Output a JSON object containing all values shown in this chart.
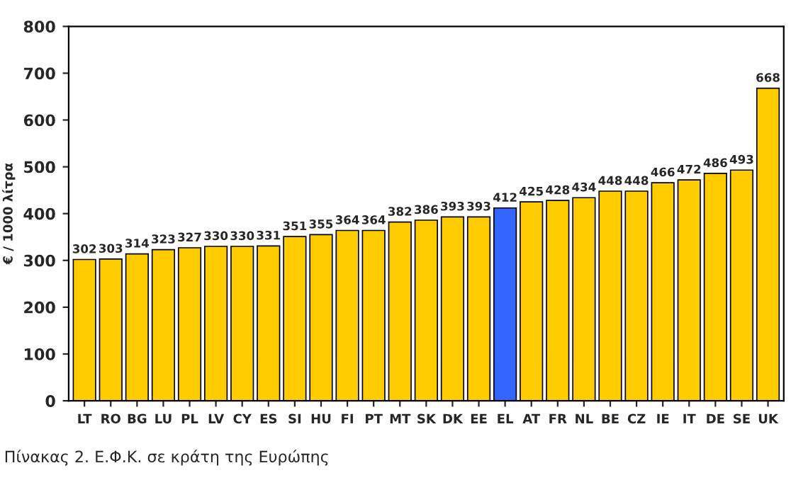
{
  "chart_data": {
    "type": "bar",
    "ylabel": "€ / 1000 λίτρα",
    "categories": [
      "LT",
      "RO",
      "BG",
      "LU",
      "PL",
      "LV",
      "CY",
      "ES",
      "SI",
      "HU",
      "FI",
      "PT",
      "MT",
      "SK",
      "DK",
      "EE",
      "EL",
      "AT",
      "FR",
      "NL",
      "BE",
      "CZ",
      "IE",
      "IT",
      "DE",
      "SE",
      "UK"
    ],
    "values": [
      302,
      303,
      314,
      323,
      327,
      330,
      330,
      331,
      351,
      355,
      364,
      364,
      382,
      386,
      393,
      393,
      412,
      425,
      428,
      434,
      448,
      448,
      466,
      472,
      486,
      493,
      668
    ],
    "colors": [
      "#ffcc00",
      "#ffcc00",
      "#ffcc00",
      "#ffcc00",
      "#ffcc00",
      "#ffcc00",
      "#ffcc00",
      "#ffcc00",
      "#ffcc00",
      "#ffcc00",
      "#ffcc00",
      "#ffcc00",
      "#ffcc00",
      "#ffcc00",
      "#ffcc00",
      "#ffcc00",
      "#3366ff",
      "#ffcc00",
      "#ffcc00",
      "#ffcc00",
      "#ffcc00",
      "#ffcc00",
      "#ffcc00",
      "#ffcc00",
      "#ffcc00",
      "#ffcc00",
      "#ffcc00"
    ],
    "ylim": [
      0,
      800
    ],
    "yticks": [
      0,
      100,
      200,
      300,
      400,
      500,
      600,
      700,
      800
    ],
    "data_labels": true,
    "grid": false,
    "annotations": [
      "Πίνακας 2. Ε.Φ.Κ. σε κράτη της Ευρώπης"
    ]
  }
}
